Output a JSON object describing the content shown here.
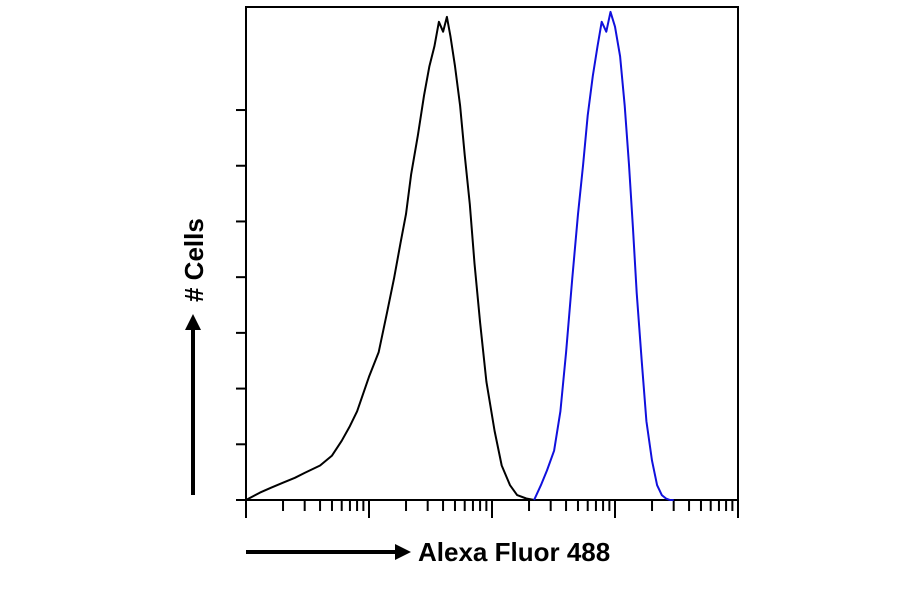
{
  "chart_data": {
    "type": "line",
    "title": "",
    "xlabel": "Alexa Fluor 488",
    "ylabel": "# Cells",
    "x_scale": "log",
    "xlim": [
      0.1,
      1000
    ],
    "ylim": [
      0,
      100
    ],
    "grid": false,
    "legend": "none",
    "series": [
      {
        "color": "#000000",
        "x": [
          0.1,
          0.13,
          0.16,
          0.2,
          0.25,
          0.3,
          0.4,
          0.5,
          0.6,
          0.7,
          0.8,
          1.0,
          1.2,
          1.4,
          1.6,
          1.8,
          2.0,
          2.2,
          2.5,
          2.8,
          3.1,
          3.4,
          3.7,
          4.0,
          4.3,
          4.6,
          5.0,
          5.5,
          6.0,
          6.6,
          7.2,
          8.0,
          9.0,
          10.5,
          12.0,
          14.0,
          16.0,
          19.0,
          22.0
        ],
        "y": [
          0,
          1.5,
          2.5,
          3.5,
          4.5,
          5.5,
          7,
          9,
          12,
          15,
          18,
          25,
          30,
          38,
          45,
          52,
          58,
          66,
          74,
          82,
          88,
          92,
          97,
          95,
          98,
          94,
          88,
          80,
          70,
          60,
          48,
          36,
          24,
          14,
          7,
          3,
          1,
          0.3,
          0
        ]
      },
      {
        "color": "#1010dd",
        "x": [
          22.0,
          25.0,
          28.0,
          32.0,
          36.0,
          40.0,
          45.0,
          50.0,
          55.0,
          60.0,
          66.0,
          72.0,
          78.0,
          85.0,
          92.0,
          100.0,
          110.0,
          120.0,
          130.0,
          140.0,
          150.0,
          165.0,
          180.0,
          200.0,
          220.0,
          240.0,
          260.0,
          280.0,
          300.0
        ],
        "y": [
          0,
          3,
          6,
          10,
          18,
          30,
          45,
          58,
          68,
          78,
          86,
          92,
          97,
          95,
          99,
          96,
          90,
          80,
          68,
          55,
          42,
          28,
          16,
          8,
          3,
          1,
          0.3,
          0,
          0
        ]
      }
    ]
  },
  "colors": {
    "frame": "#000000",
    "control": "#000000",
    "stained": "#1010dd"
  }
}
